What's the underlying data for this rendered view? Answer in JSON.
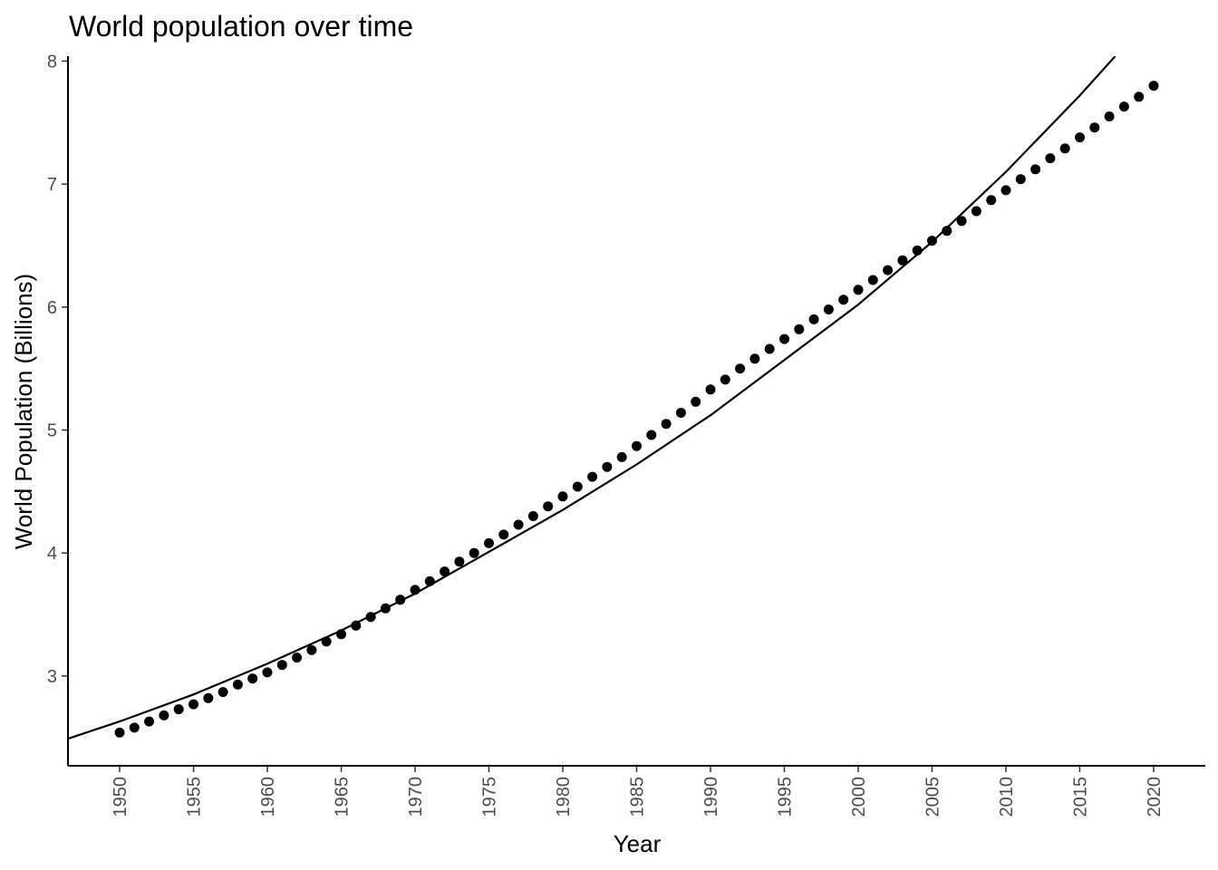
{
  "chart_data": {
    "type": "scatter",
    "title": "World population over time",
    "xlabel": "Year",
    "ylabel": "World Population (Billions)",
    "xlim": [
      1946.5,
      2023.5
    ],
    "ylim": [
      2.27,
      8.04
    ],
    "x_ticks": [
      1950,
      1955,
      1960,
      1965,
      1970,
      1975,
      1980,
      1985,
      1990,
      1995,
      2000,
      2005,
      2010,
      2015,
      2020
    ],
    "y_ticks": [
      3,
      4,
      5,
      6,
      7,
      8
    ],
    "grid": false,
    "legend": "none",
    "colors": {
      "points": "#000000",
      "line": "#000000",
      "axis": "#000000",
      "tick_text": "#4d4d4d"
    },
    "series": [
      {
        "kind": "points",
        "x": [
          1950,
          1951,
          1952,
          1953,
          1954,
          1955,
          1956,
          1957,
          1958,
          1959,
          1960,
          1961,
          1962,
          1963,
          1964,
          1965,
          1966,
          1967,
          1968,
          1969,
          1970,
          1971,
          1972,
          1973,
          1974,
          1975,
          1976,
          1977,
          1978,
          1979,
          1980,
          1981,
          1982,
          1983,
          1984,
          1985,
          1986,
          1987,
          1988,
          1989,
          1990,
          1991,
          1992,
          1993,
          1994,
          1995,
          1996,
          1997,
          1998,
          1999,
          2000,
          2001,
          2002,
          2003,
          2004,
          2005,
          2006,
          2007,
          2008,
          2009,
          2010,
          2011,
          2012,
          2013,
          2014,
          2015,
          2016,
          2017,
          2018,
          2019,
          2020
        ],
        "y": [
          2.54,
          2.58,
          2.63,
          2.68,
          2.73,
          2.77,
          2.82,
          2.87,
          2.93,
          2.98,
          3.03,
          3.09,
          3.15,
          3.21,
          3.28,
          3.34,
          3.41,
          3.48,
          3.55,
          3.62,
          3.7,
          3.77,
          3.85,
          3.93,
          4.0,
          4.08,
          4.15,
          4.23,
          4.3,
          4.38,
          4.46,
          4.54,
          4.62,
          4.7,
          4.78,
          4.87,
          4.96,
          5.05,
          5.14,
          5.23,
          5.33,
          5.41,
          5.5,
          5.58,
          5.66,
          5.74,
          5.82,
          5.9,
          5.98,
          6.06,
          6.14,
          6.22,
          6.3,
          6.38,
          6.46,
          6.54,
          6.62,
          6.7,
          6.78,
          6.87,
          6.95,
          7.04,
          7.12,
          7.21,
          7.29,
          7.38,
          7.46,
          7.55,
          7.63,
          7.71,
          7.8
        ]
      },
      {
        "kind": "fit-line",
        "x": [
          1946.5,
          1950,
          1955,
          1960,
          1965,
          1970,
          1975,
          1980,
          1985,
          1990,
          1995,
          2000,
          2005,
          2010,
          2015,
          2017.4
        ],
        "y": [
          2.49,
          2.63,
          2.85,
          3.1,
          3.37,
          3.67,
          4.01,
          4.35,
          4.72,
          5.12,
          5.57,
          6.02,
          6.53,
          7.1,
          7.72,
          8.04
        ]
      }
    ]
  }
}
